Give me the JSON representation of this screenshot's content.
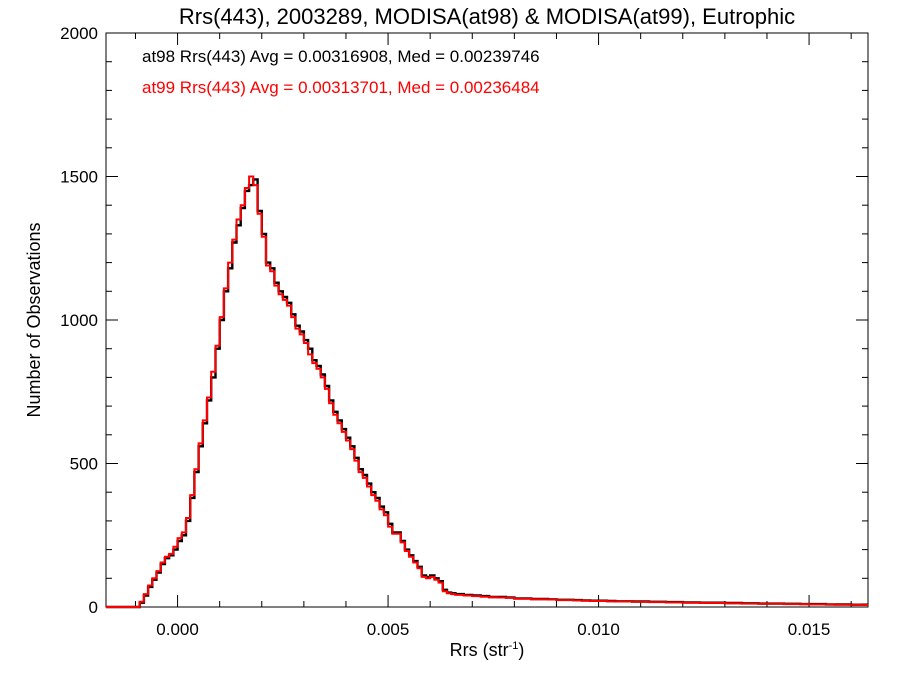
{
  "chart_data": {
    "type": "line",
    "title": "Rrs(443), 2003289, MODISA(at98) & MODISA(at99), Eutrophic",
    "xlabel": "Rrs (str",
    "xlabel_sup": "-1",
    "xlabel_suffix": ")",
    "ylabel": "Number of Observations",
    "xlim": [
      -0.0017,
      0.0164
    ],
    "ylim": [
      0,
      2000
    ],
    "xticks": [
      0.0,
      0.005,
      0.01,
      0.015
    ],
    "xtick_labels": [
      "0.000",
      "0.005",
      "0.010",
      "0.015"
    ],
    "yticks": [
      0,
      500,
      1000,
      1500,
      2000
    ],
    "ytick_labels": [
      "0",
      "500",
      "1000",
      "1500",
      "2000"
    ],
    "legend_placement": "top-left",
    "grid": false,
    "step": true,
    "series": [
      {
        "name": "at98 Rrs(443) Avg = 0.00316908, Med = 0.00239746",
        "color": "#000000",
        "x": [
          -0.0017,
          -0.001,
          -0.0009,
          -0.0008,
          -0.0007,
          -0.0006,
          -0.0005,
          -0.0004,
          -0.0003,
          -0.0002,
          -0.0001,
          0.0,
          0.0001,
          0.0002,
          0.0003,
          0.0004,
          0.0005,
          0.0006,
          0.0007,
          0.0008,
          0.0009,
          0.001,
          0.0011,
          0.0012,
          0.0013,
          0.0014,
          0.0015,
          0.0016,
          0.0017,
          0.0018,
          0.0019,
          0.002,
          0.0021,
          0.0022,
          0.0023,
          0.0024,
          0.0025,
          0.0026,
          0.0027,
          0.0028,
          0.0029,
          0.003,
          0.0031,
          0.0032,
          0.0033,
          0.0034,
          0.0035,
          0.0036,
          0.0037,
          0.0038,
          0.0039,
          0.004,
          0.0041,
          0.0042,
          0.0043,
          0.0044,
          0.0045,
          0.0046,
          0.0047,
          0.0048,
          0.0049,
          0.005,
          0.0051,
          0.0052,
          0.0053,
          0.0054,
          0.0055,
          0.0056,
          0.0057,
          0.0058,
          0.0059,
          0.006,
          0.0061,
          0.0062,
          0.0063,
          0.0064,
          0.0065,
          0.0066,
          0.0068,
          0.007,
          0.0072,
          0.0074,
          0.0076,
          0.0078,
          0.008,
          0.0082,
          0.0084,
          0.0086,
          0.0088,
          0.009,
          0.0092,
          0.0094,
          0.0096,
          0.0098,
          0.01,
          0.0102,
          0.0104,
          0.0106,
          0.0108,
          0.011,
          0.0112,
          0.0114,
          0.0116,
          0.0118,
          0.012,
          0.0122,
          0.0124,
          0.0126,
          0.0128,
          0.013,
          0.0132,
          0.0134,
          0.0136,
          0.0138,
          0.014,
          0.0142,
          0.0144,
          0.0146,
          0.0148,
          0.015,
          0.0152,
          0.0154,
          0.0156,
          0.0158,
          0.016,
          0.0162,
          0.0164
        ],
        "y": [
          0,
          0,
          15,
          40,
          70,
          95,
          120,
          150,
          170,
          180,
          200,
          230,
          250,
          300,
          380,
          470,
          560,
          640,
          720,
          800,
          900,
          1000,
          1100,
          1180,
          1270,
          1330,
          1390,
          1450,
          1470,
          1490,
          1380,
          1300,
          1200,
          1180,
          1130,
          1100,
          1080,
          1060,
          1020,
          980,
          960,
          930,
          900,
          860,
          840,
          810,
          770,
          720,
          680,
          650,
          620,
          590,
          560,
          520,
          480,
          460,
          430,
          400,
          380,
          350,
          330,
          290,
          260,
          260,
          230,
          200,
          180,
          160,
          140,
          110,
          105,
          110,
          100,
          90,
          60,
          50,
          48,
          45,
          42,
          40,
          38,
          35,
          35,
          33,
          30,
          30,
          28,
          28,
          27,
          25,
          25,
          24,
          23,
          22,
          22,
          21,
          20,
          20,
          19,
          19,
          18,
          18,
          17,
          17,
          16,
          16,
          15,
          15,
          15,
          14,
          14,
          13,
          13,
          12,
          12,
          12,
          11,
          11,
          10,
          10,
          10,
          9,
          9,
          9,
          8,
          8,
          8
        ]
      },
      {
        "name": "at99 Rrs(443) Avg = 0.00313701, Med = 0.00236484",
        "color": "#ff0000",
        "x": [
          -0.0017,
          -0.001,
          -0.0009,
          -0.0008,
          -0.0007,
          -0.0006,
          -0.0005,
          -0.0004,
          -0.0003,
          -0.0002,
          -0.0001,
          0.0,
          0.0001,
          0.0002,
          0.0003,
          0.0004,
          0.0005,
          0.0006,
          0.0007,
          0.0008,
          0.0009,
          0.001,
          0.0011,
          0.0012,
          0.0013,
          0.0014,
          0.0015,
          0.0016,
          0.0017,
          0.0018,
          0.0019,
          0.002,
          0.0021,
          0.0022,
          0.0023,
          0.0024,
          0.0025,
          0.0026,
          0.0027,
          0.0028,
          0.0029,
          0.003,
          0.0031,
          0.0032,
          0.0033,
          0.0034,
          0.0035,
          0.0036,
          0.0037,
          0.0038,
          0.0039,
          0.004,
          0.0041,
          0.0042,
          0.0043,
          0.0044,
          0.0045,
          0.0046,
          0.0047,
          0.0048,
          0.0049,
          0.005,
          0.0051,
          0.0052,
          0.0053,
          0.0054,
          0.0055,
          0.0056,
          0.0057,
          0.0058,
          0.0059,
          0.006,
          0.0061,
          0.0062,
          0.0063,
          0.0064,
          0.0065,
          0.0066,
          0.0068,
          0.007,
          0.0072,
          0.0074,
          0.0076,
          0.0078,
          0.008,
          0.0082,
          0.0084,
          0.0086,
          0.0088,
          0.009,
          0.0092,
          0.0094,
          0.0096,
          0.0098,
          0.01,
          0.0102,
          0.0104,
          0.0106,
          0.0108,
          0.011,
          0.0112,
          0.0114,
          0.0116,
          0.0118,
          0.012,
          0.0122,
          0.0124,
          0.0126,
          0.0128,
          0.013,
          0.0132,
          0.0134,
          0.0136,
          0.0138,
          0.014,
          0.0142,
          0.0144,
          0.0146,
          0.0148,
          0.015,
          0.0152,
          0.0154,
          0.0156,
          0.0158,
          0.016,
          0.0162,
          0.0164
        ],
        "y": [
          0,
          0,
          18,
          45,
          75,
          100,
          125,
          155,
          175,
          185,
          210,
          240,
          260,
          310,
          390,
          480,
          570,
          650,
          730,
          820,
          910,
          1010,
          1110,
          1200,
          1280,
          1350,
          1400,
          1460,
          1500,
          1470,
          1370,
          1290,
          1190,
          1170,
          1120,
          1090,
          1070,
          1050,
          1010,
          970,
          950,
          920,
          880,
          850,
          830,
          800,
          760,
          710,
          670,
          640,
          610,
          580,
          550,
          510,
          470,
          450,
          420,
          390,
          370,
          340,
          320,
          280,
          255,
          255,
          225,
          195,
          175,
          155,
          135,
          105,
          100,
          105,
          95,
          85,
          55,
          48,
          45,
          42,
          40,
          38,
          36,
          34,
          33,
          32,
          29,
          29,
          27,
          27,
          26,
          24,
          24,
          23,
          22,
          21,
          21,
          20,
          19,
          19,
          18,
          18,
          17,
          17,
          16,
          16,
          15,
          15,
          14,
          14,
          14,
          13,
          13,
          12,
          12,
          11,
          11,
          11,
          10,
          10,
          10,
          9,
          9,
          9,
          8,
          8,
          8,
          7,
          7
        ]
      }
    ]
  }
}
